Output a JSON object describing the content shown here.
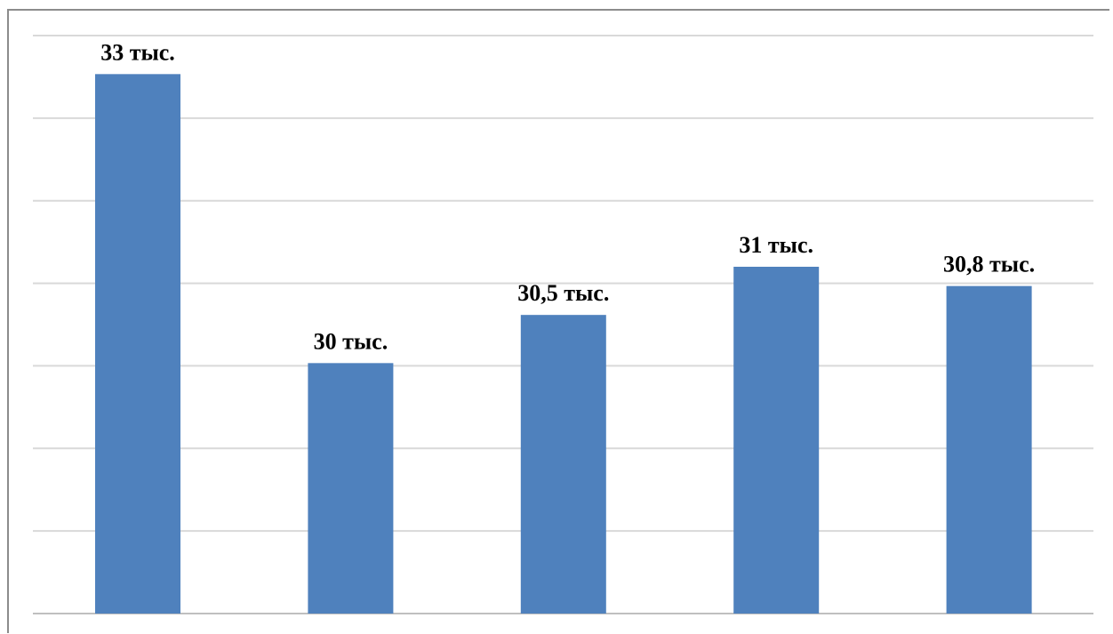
{
  "chart_data": {
    "type": "bar",
    "title": "",
    "xlabel": "",
    "ylabel": "",
    "categories": [
      "",
      "",
      "",
      "",
      ""
    ],
    "values": [
      33,
      30,
      30.5,
      31,
      30.8
    ],
    "data_labels": [
      "33 тыс.",
      "30 тыс.",
      "30,5 тыс.",
      "31 тыс.",
      "30,8 тыс."
    ],
    "ylim": [
      27.4,
      33.4
    ],
    "grid": true,
    "legend": "none",
    "colors": {
      "bar": "#4f81bd",
      "grid": "#d9d9d9",
      "axis": "#bfbfbf",
      "frame": "#8c8c8c"
    }
  }
}
